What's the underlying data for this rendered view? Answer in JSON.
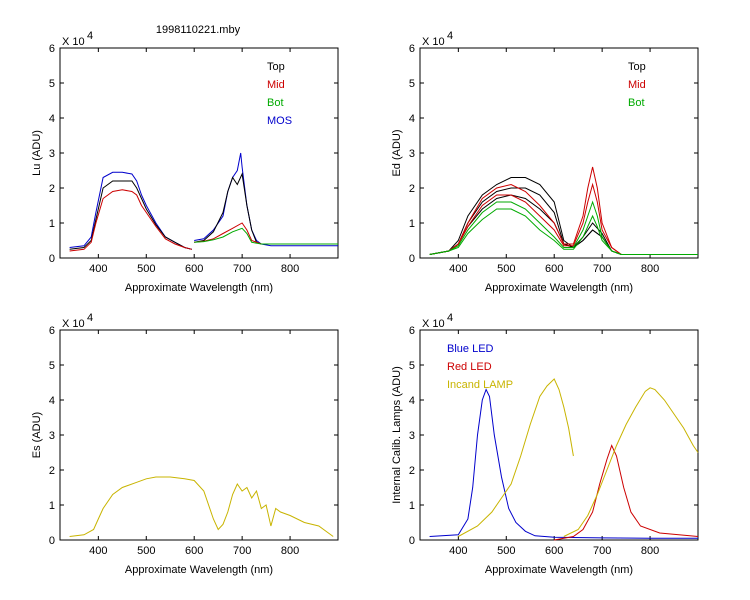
{
  "page_title": "1998110221.mby",
  "chart_data": [
    {
      "id": "lu",
      "type": "line",
      "ylabel": "Lu (ADU)",
      "xlabel": "Approximate Wavelength (nm)",
      "exponent": "X 10",
      "exponent_power": "4",
      "xlim": [
        320,
        900
      ],
      "ylim": [
        0,
        6
      ],
      "xticks": [
        "400",
        "500",
        "600",
        "700",
        "800"
      ],
      "yticks": [
        "0",
        "1",
        "2",
        "3",
        "4",
        "5",
        "6"
      ],
      "legend": [
        {
          "label": "Top",
          "color": "#000000"
        },
        {
          "label": "Mid",
          "color": "#cc0000"
        },
        {
          "label": "Bot",
          "color": "#00aa00"
        },
        {
          "label": "MOS",
          "color": "#0000cc"
        }
      ],
      "series": [
        {
          "name": "MOS",
          "color": "#0000cc",
          "x": [
            340,
            370,
            385,
            395,
            410,
            430,
            450,
            470,
            480,
            490,
            500,
            520,
            540,
            560,
            580,
            595
          ],
          "y": [
            0.3,
            0.35,
            0.6,
            1.3,
            2.3,
            2.45,
            2.45,
            2.4,
            2.2,
            1.8,
            1.5,
            1.0,
            0.6,
            0.45,
            0.3,
            0.25
          ]
        },
        {
          "name": "Top",
          "color": "#000000",
          "x": [
            340,
            370,
            385,
            395,
            410,
            430,
            450,
            470,
            480,
            490,
            500,
            520,
            540,
            560,
            580,
            595
          ],
          "y": [
            0.25,
            0.3,
            0.5,
            1.1,
            2.0,
            2.2,
            2.2,
            2.2,
            2.0,
            1.7,
            1.4,
            0.95,
            0.6,
            0.45,
            0.3,
            0.25
          ]
        },
        {
          "name": "Mid",
          "color": "#cc0000",
          "x": [
            340,
            370,
            385,
            395,
            410,
            430,
            450,
            470,
            480,
            490,
            500,
            520,
            540,
            560,
            580,
            595
          ],
          "y": [
            0.2,
            0.25,
            0.45,
            1.0,
            1.7,
            1.9,
            1.95,
            1.9,
            1.8,
            1.5,
            1.3,
            0.9,
            0.55,
            0.4,
            0.3,
            0.25
          ]
        },
        {
          "name": "MOS2",
          "color": "#0000cc",
          "x": [
            600,
            620,
            640,
            660,
            670,
            680,
            690,
            697,
            700,
            710,
            720,
            730,
            740,
            760,
            800,
            900
          ],
          "y": [
            0.5,
            0.55,
            0.8,
            1.2,
            1.9,
            2.3,
            2.5,
            3.0,
            2.6,
            1.5,
            0.8,
            0.5,
            0.4,
            0.35,
            0.35,
            0.35
          ]
        },
        {
          "name": "Top2",
          "color": "#000000",
          "x": [
            600,
            620,
            640,
            660,
            670,
            680,
            690,
            700,
            710,
            720,
            730,
            740,
            760,
            800,
            900
          ],
          "y": [
            0.45,
            0.5,
            0.75,
            1.3,
            1.9,
            2.3,
            2.1,
            2.4,
            1.5,
            0.8,
            0.45,
            0.4,
            0.4,
            0.4,
            0.4
          ]
        },
        {
          "name": "Mid2",
          "color": "#cc0000",
          "x": [
            600,
            620,
            640,
            660,
            680,
            700,
            710,
            720,
            740,
            800,
            900
          ],
          "y": [
            0.45,
            0.48,
            0.55,
            0.7,
            0.85,
            1.0,
            0.8,
            0.5,
            0.4,
            0.4,
            0.4
          ]
        },
        {
          "name": "Bot2",
          "color": "#00aa00",
          "x": [
            600,
            620,
            640,
            660,
            680,
            700,
            710,
            720,
            740,
            800,
            900
          ],
          "y": [
            0.45,
            0.47,
            0.52,
            0.6,
            0.75,
            0.85,
            0.7,
            0.45,
            0.4,
            0.4,
            0.4
          ]
        }
      ]
    },
    {
      "id": "ed",
      "type": "line",
      "ylabel": "Ed  (ADU)",
      "xlabel": "Approximate Wavelength (nm)",
      "exponent": "X 10",
      "exponent_power": "4",
      "xlim": [
        320,
        900
      ],
      "ylim": [
        0,
        6
      ],
      "xticks": [
        "400",
        "500",
        "600",
        "700",
        "800"
      ],
      "yticks": [
        "0",
        "1",
        "2",
        "3",
        "4",
        "5",
        "6"
      ],
      "legend": [
        {
          "label": "Top",
          "color": "#000000"
        },
        {
          "label": "Mid",
          "color": "#cc0000"
        },
        {
          "label": "Bot",
          "color": "#00aa00"
        }
      ],
      "series": [
        {
          "name": "Top-a",
          "color": "#000000",
          "x": [
            340,
            380,
            400,
            420,
            450,
            480,
            510,
            540,
            570,
            600,
            620,
            640,
            660,
            680,
            700,
            720,
            740,
            780,
            900
          ],
          "y": [
            0.1,
            0.2,
            0.5,
            1.2,
            1.8,
            2.1,
            2.3,
            2.3,
            2.1,
            1.6,
            0.5,
            0.3,
            0.5,
            0.8,
            0.6,
            0.2,
            0.1,
            0.1,
            0.1
          ]
        },
        {
          "name": "Top-b",
          "color": "#000000",
          "x": [
            340,
            380,
            400,
            420,
            450,
            480,
            510,
            540,
            570,
            600,
            620,
            640,
            660,
            680,
            700,
            720,
            740,
            780,
            900
          ],
          "y": [
            0.1,
            0.2,
            0.4,
            1.0,
            1.6,
            1.9,
            2.0,
            2.0,
            1.8,
            1.3,
            0.4,
            0.3,
            0.6,
            1.0,
            0.7,
            0.2,
            0.1,
            0.1,
            0.1
          ]
        },
        {
          "name": "Top-c",
          "color": "#000000",
          "x": [
            340,
            380,
            400,
            420,
            450,
            480,
            510,
            540,
            570,
            600,
            620,
            640,
            660,
            680,
            700,
            720,
            740,
            780,
            900
          ],
          "y": [
            0.1,
            0.2,
            0.4,
            0.9,
            1.4,
            1.7,
            1.8,
            1.7,
            1.4,
            1.0,
            0.4,
            0.3,
            0.5,
            0.8,
            0.6,
            0.2,
            0.1,
            0.1,
            0.1
          ]
        },
        {
          "name": "Mid-a",
          "color": "#cc0000",
          "x": [
            340,
            380,
            400,
            420,
            450,
            480,
            510,
            540,
            570,
            600,
            620,
            640,
            660,
            670,
            680,
            690,
            700,
            720,
            740,
            900
          ],
          "y": [
            0.1,
            0.2,
            0.4,
            1.0,
            1.7,
            2.0,
            2.1,
            1.9,
            1.5,
            1.0,
            0.4,
            0.4,
            1.2,
            2.0,
            2.6,
            2.0,
            1.0,
            0.3,
            0.1,
            0.1
          ]
        },
        {
          "name": "Mid-b",
          "color": "#cc0000",
          "x": [
            340,
            380,
            400,
            420,
            450,
            480,
            510,
            540,
            570,
            600,
            620,
            640,
            660,
            670,
            680,
            690,
            700,
            720,
            740,
            900
          ],
          "y": [
            0.1,
            0.2,
            0.4,
            0.9,
            1.5,
            1.8,
            1.8,
            1.6,
            1.2,
            0.8,
            0.35,
            0.35,
            1.0,
            1.6,
            2.1,
            1.6,
            0.8,
            0.3,
            0.1,
            0.1
          ]
        },
        {
          "name": "Bot-a",
          "color": "#00aa00",
          "x": [
            340,
            380,
            400,
            420,
            450,
            480,
            510,
            540,
            570,
            600,
            620,
            640,
            660,
            670,
            680,
            690,
            700,
            720,
            740,
            900
          ],
          "y": [
            0.1,
            0.2,
            0.35,
            0.8,
            1.3,
            1.6,
            1.6,
            1.4,
            1.0,
            0.6,
            0.3,
            0.3,
            0.8,
            1.2,
            1.6,
            1.2,
            0.6,
            0.2,
            0.1,
            0.1
          ]
        },
        {
          "name": "Bot-b",
          "color": "#00aa00",
          "x": [
            340,
            380,
            400,
            420,
            450,
            480,
            510,
            540,
            570,
            600,
            620,
            640,
            660,
            670,
            680,
            690,
            700,
            720,
            740,
            900
          ],
          "y": [
            0.1,
            0.2,
            0.3,
            0.7,
            1.1,
            1.4,
            1.4,
            1.2,
            0.8,
            0.5,
            0.25,
            0.25,
            0.6,
            0.9,
            1.2,
            0.9,
            0.5,
            0.2,
            0.1,
            0.1
          ]
        }
      ]
    },
    {
      "id": "es",
      "type": "line",
      "ylabel": "Es  (ADU)",
      "xlabel": "Approximate Wavelength (nm)",
      "exponent": "X 10",
      "exponent_power": "4",
      "xlim": [
        320,
        900
      ],
      "ylim": [
        0,
        6
      ],
      "xticks": [
        "400",
        "500",
        "600",
        "700",
        "800"
      ],
      "yticks": [
        "0",
        "1",
        "2",
        "3",
        "4",
        "5",
        "6"
      ],
      "legend": [],
      "series": [
        {
          "name": "Es",
          "color": "#c8b400",
          "x": [
            340,
            370,
            390,
            400,
            410,
            430,
            450,
            480,
            500,
            520,
            550,
            580,
            600,
            620,
            640,
            650,
            660,
            670,
            680,
            690,
            700,
            710,
            720,
            730,
            740,
            750,
            760,
            770,
            780,
            800,
            830,
            860,
            880,
            890
          ],
          "y": [
            0.1,
            0.15,
            0.3,
            0.6,
            0.9,
            1.3,
            1.5,
            1.65,
            1.75,
            1.8,
            1.8,
            1.75,
            1.7,
            1.4,
            0.6,
            0.3,
            0.45,
            0.8,
            1.3,
            1.6,
            1.4,
            1.5,
            1.2,
            1.4,
            0.9,
            1.0,
            0.4,
            0.9,
            0.8,
            0.7,
            0.5,
            0.4,
            0.2,
            0.1
          ]
        }
      ]
    },
    {
      "id": "lamps",
      "type": "line",
      "ylabel": "Internal Calib. Lamps (ADU)",
      "xlabel": "Approximate Wavelength (nm)",
      "exponent": "X 10",
      "exponent_power": "4",
      "xlim": [
        320,
        900
      ],
      "ylim": [
        0,
        6
      ],
      "xticks": [
        "400",
        "500",
        "600",
        "700",
        "800"
      ],
      "yticks": [
        "0",
        "1",
        "2",
        "3",
        "4",
        "5",
        "6"
      ],
      "legend": [
        {
          "label": "Blue LED",
          "color": "#0000cc"
        },
        {
          "label": "Red LED",
          "color": "#cc0000"
        },
        {
          "label": "Incand LAMP",
          "color": "#c8b400"
        }
      ],
      "series": [
        {
          "name": "Blue LED",
          "color": "#0000cc",
          "x": [
            340,
            400,
            420,
            430,
            440,
            450,
            458,
            465,
            475,
            490,
            505,
            520,
            540,
            560,
            600,
            700,
            800,
            900
          ],
          "y": [
            0.1,
            0.15,
            0.6,
            1.5,
            3.0,
            4.0,
            4.3,
            4.1,
            3.0,
            1.8,
            0.9,
            0.5,
            0.25,
            0.12,
            0.08,
            0.06,
            0.05,
            0.05
          ]
        },
        {
          "name": "Red LED",
          "color": "#cc0000",
          "x": [
            600,
            640,
            660,
            680,
            695,
            710,
            720,
            730,
            745,
            760,
            780,
            820,
            900
          ],
          "y": [
            0.0,
            0.1,
            0.3,
            0.8,
            1.6,
            2.3,
            2.7,
            2.4,
            1.5,
            0.8,
            0.4,
            0.2,
            0.1
          ]
        },
        {
          "name": "Incand LAMP A",
          "color": "#c8b400",
          "x": [
            400,
            440,
            470,
            490,
            510,
            530,
            550,
            570,
            585,
            600,
            610,
            620,
            630,
            640
          ],
          "y": [
            0.1,
            0.4,
            0.8,
            1.2,
            1.6,
            2.4,
            3.3,
            4.1,
            4.4,
            4.6,
            4.3,
            3.8,
            3.2,
            2.4
          ]
        },
        {
          "name": "Incand LAMP B",
          "color": "#c8b400",
          "x": [
            620,
            650,
            670,
            690,
            710,
            730,
            750,
            770,
            790,
            800,
            810,
            830,
            850,
            870,
            890,
            900
          ],
          "y": [
            0.1,
            0.3,
            0.7,
            1.3,
            2.0,
            2.7,
            3.3,
            3.8,
            4.25,
            4.35,
            4.3,
            4.0,
            3.6,
            3.2,
            2.7,
            2.5
          ]
        }
      ]
    }
  ]
}
